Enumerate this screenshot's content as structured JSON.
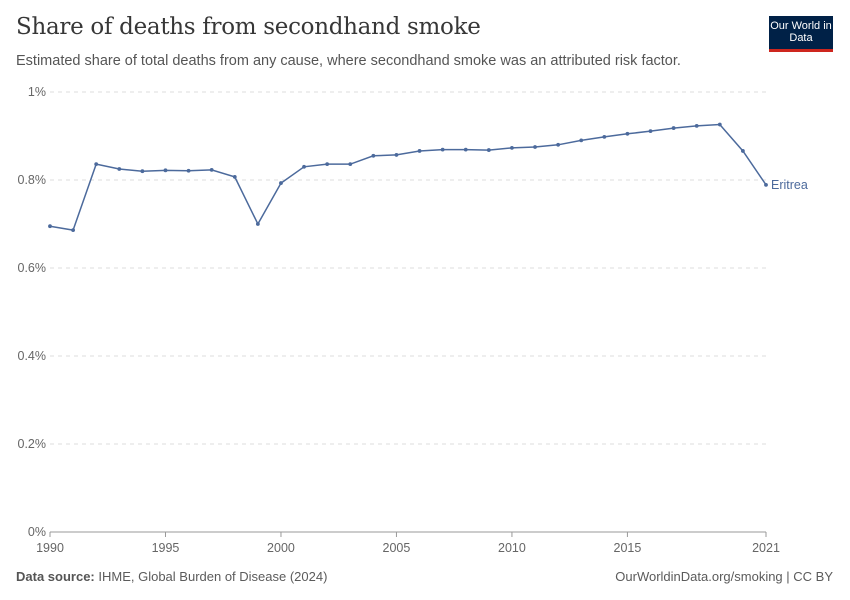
{
  "header": {
    "title": "Share of deaths from secondhand smoke",
    "subtitle": "Estimated share of total deaths from any cause, where secondhand smoke was an attributed risk factor.",
    "logo": "Our World in Data"
  },
  "footer": {
    "source_label": "Data source:",
    "source": "IHME, Global Burden of Disease (2024)",
    "link": "OurWorldinData.org/smoking | CC BY"
  },
  "colors": {
    "series": "#4c6a9c",
    "grid": "#dddddd"
  },
  "chart_data": {
    "type": "line",
    "title": "Share of deaths from secondhand smoke",
    "ylim": [
      0,
      1
    ],
    "yticks": [
      "0%",
      "0.2%",
      "0.4%",
      "0.6%",
      "0.8%",
      "1%"
    ],
    "ytick_values": [
      0,
      0.2,
      0.4,
      0.6,
      0.8,
      1
    ],
    "xticks": [
      1990,
      1995,
      2000,
      2005,
      2010,
      2015,
      2021
    ],
    "xlim": [
      1990,
      2021
    ],
    "grid": "horizontal dashed",
    "series": [
      {
        "name": "Eritrea",
        "x": [
          1990,
          1991,
          1992,
          1993,
          1994,
          1995,
          1996,
          1997,
          1998,
          1999,
          2000,
          2001,
          2002,
          2003,
          2004,
          2005,
          2006,
          2007,
          2008,
          2009,
          2010,
          2011,
          2012,
          2013,
          2014,
          2015,
          2016,
          2017,
          2018,
          2019,
          2020,
          2021
        ],
        "values": [
          0.695,
          0.686,
          0.836,
          0.825,
          0.82,
          0.822,
          0.821,
          0.823,
          0.807,
          0.7,
          0.793,
          0.83,
          0.836,
          0.836,
          0.855,
          0.857,
          0.866,
          0.869,
          0.869,
          0.868,
          0.873,
          0.875,
          0.88,
          0.89,
          0.898,
          0.905,
          0.911,
          0.918,
          0.923,
          0.926,
          0.866,
          0.789
        ]
      }
    ]
  }
}
